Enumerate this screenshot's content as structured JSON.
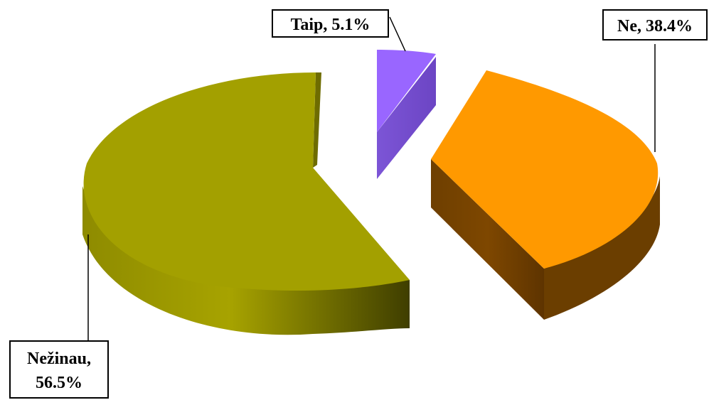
{
  "chart_data": {
    "type": "pie",
    "title": "",
    "three_d": true,
    "exploded": true,
    "slices": [
      {
        "label": "Taip",
        "value": 5.1,
        "display": "Taip, 5.1%",
        "color": "#9966FF",
        "side_color": "#7A4FD0"
      },
      {
        "label": "Ne",
        "value": 38.4,
        "display": "Ne, 38.4%",
        "color": "#FF9900",
        "side_color": "#6B3E00"
      },
      {
        "label": "Nežinau",
        "value": 56.5,
        "display_lines": [
          "Nežinau,",
          "56.5%"
        ],
        "color": "#A3A000",
        "side_color": "#6E6C00"
      }
    ]
  }
}
